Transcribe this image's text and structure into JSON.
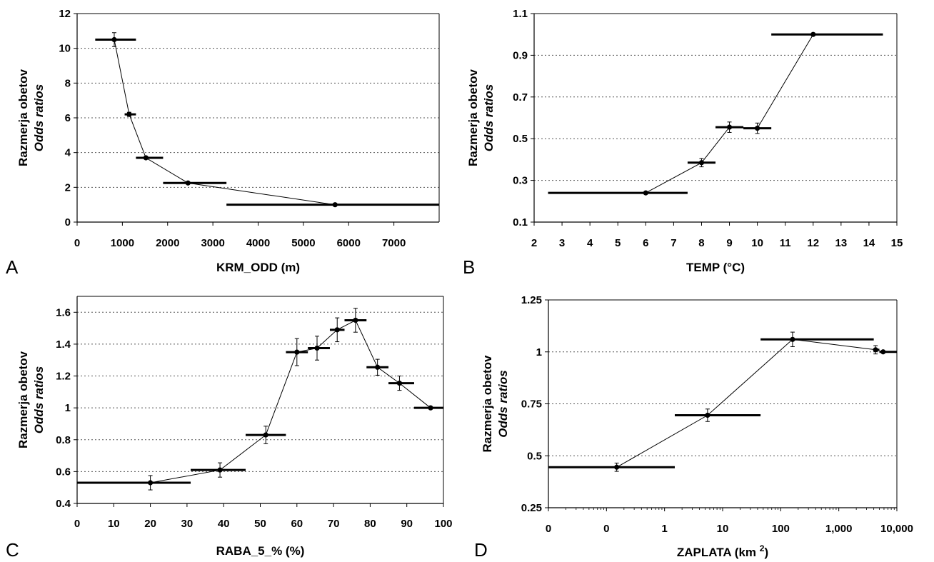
{
  "chart_data": [
    {
      "panel": "A",
      "type": "line",
      "xlabel": "KRM_ODD (m)",
      "ylabel": "Razmerja obetov",
      "ylabel_en": "Odds ratios",
      "xlim": [
        0,
        8000
      ],
      "ylim": [
        0,
        12
      ],
      "xticks": [
        0,
        1000,
        2000,
        3000,
        4000,
        5000,
        6000,
        7000
      ],
      "yticks": [
        0,
        2,
        4,
        6,
        8,
        10,
        12
      ],
      "xtick_labels": [
        "0",
        "1000",
        "2000",
        "3000",
        "4000",
        "5000",
        "6000",
        "7000"
      ],
      "ytick_labels": [
        "0",
        "2",
        "4",
        "6",
        "8",
        "10",
        "12"
      ],
      "grid": "horizontal-dotted",
      "points": [
        {
          "x": 820,
          "y": 10.5,
          "err": 0.4,
          "xmin": 400,
          "xmax": 1300
        },
        {
          "x": 1150,
          "y": 6.2,
          "err": 0.12,
          "xmin": 1050,
          "xmax": 1300
        },
        {
          "x": 1520,
          "y": 3.7,
          "err": 0.05,
          "xmin": 1300,
          "xmax": 1900
        },
        {
          "x": 2450,
          "y": 2.25,
          "err": 0.04,
          "xmin": 1900,
          "xmax": 3300
        },
        {
          "x": 5700,
          "y": 1.0,
          "err": 0,
          "xmin": 3300,
          "xmax": 8000
        }
      ]
    },
    {
      "panel": "B",
      "type": "line",
      "xlabel": "TEMP (°C)",
      "ylabel": "Razmerja obetov",
      "ylabel_en": "Odds ratios",
      "xlim": [
        2,
        15
      ],
      "ylim": [
        0.1,
        1.1
      ],
      "xticks": [
        2,
        3,
        4,
        5,
        6,
        7,
        8,
        9,
        10,
        11,
        12,
        13,
        14,
        15
      ],
      "yticks": [
        0.1,
        0.3,
        0.5,
        0.7,
        0.9,
        1.1
      ],
      "xtick_labels": [
        "2",
        "3",
        "4",
        "5",
        "6",
        "7",
        "8",
        "9",
        "10",
        "11",
        "12",
        "13",
        "14",
        "15"
      ],
      "ytick_labels": [
        "0.1",
        "0.3",
        "0.5",
        "0.7",
        "0.9",
        "1.1"
      ],
      "grid": "horizontal-dotted",
      "points": [
        {
          "x": 6,
          "y": 0.24,
          "err": 0,
          "xmin": 2.5,
          "xmax": 7.5
        },
        {
          "x": 8,
          "y": 0.385,
          "err": 0.02,
          "xmin": 7.5,
          "xmax": 8.5
        },
        {
          "x": 9,
          "y": 0.555,
          "err": 0.025,
          "xmin": 8.5,
          "xmax": 9.5
        },
        {
          "x": 10,
          "y": 0.55,
          "err": 0.025,
          "xmin": 9.5,
          "xmax": 10.5
        },
        {
          "x": 12,
          "y": 1.0,
          "err": 0,
          "xmin": 10.5,
          "xmax": 14.5
        }
      ]
    },
    {
      "panel": "C",
      "type": "line",
      "xlabel": "RABA_5_% (%)",
      "ylabel": "Razmerja obetov",
      "ylabel_en": "Odds ratios",
      "xlim": [
        0,
        100
      ],
      "ylim": [
        0.4,
        1.7
      ],
      "xticks": [
        0,
        10,
        20,
        30,
        40,
        50,
        60,
        70,
        80,
        90,
        100
      ],
      "yticks": [
        0.4,
        0.6,
        0.8,
        1.0,
        1.2,
        1.4,
        1.6
      ],
      "xtick_labels": [
        "0",
        "10",
        "20",
        "30",
        "40",
        "50",
        "60",
        "70",
        "80",
        "90",
        "100"
      ],
      "ytick_labels": [
        "0.4",
        "0.6",
        "0.8",
        "1",
        "1.2",
        "1.4",
        "1.6"
      ],
      "grid": "horizontal-dotted",
      "points": [
        {
          "x": 20,
          "y": 0.53,
          "err": 0.045,
          "xmin": 0,
          "xmax": 31
        },
        {
          "x": 39,
          "y": 0.61,
          "err": 0.045,
          "xmin": 31,
          "xmax": 46
        },
        {
          "x": 51.5,
          "y": 0.83,
          "err": 0.055,
          "xmin": 46,
          "xmax": 57
        },
        {
          "x": 60,
          "y": 1.35,
          "err": 0.085,
          "xmin": 57,
          "xmax": 63
        },
        {
          "x": 65.5,
          "y": 1.375,
          "err": 0.075,
          "xmin": 63,
          "xmax": 69
        },
        {
          "x": 71,
          "y": 1.49,
          "err": 0.075,
          "xmin": 69,
          "xmax": 73
        },
        {
          "x": 76,
          "y": 1.55,
          "err": 0.075,
          "xmin": 73,
          "xmax": 79
        },
        {
          "x": 82,
          "y": 1.255,
          "err": 0.05,
          "xmin": 79,
          "xmax": 85
        },
        {
          "x": 88,
          "y": 1.155,
          "err": 0.045,
          "xmin": 85,
          "xmax": 92
        },
        {
          "x": 96.5,
          "y": 1.0,
          "err": 0,
          "xmin": 92,
          "xmax": 100
        }
      ]
    },
    {
      "panel": "D",
      "type": "line",
      "xlabel": "ZAPLATA (km²)",
      "xlabel_base": "ZAPLATA (km",
      "xlabel_sup": "2",
      "xlabel_tail": ")",
      "ylabel": "Razmerja obetov",
      "ylabel_en": "Odds ratios",
      "xscale": "log",
      "xlim": [
        0.01,
        10000
      ],
      "ylim": [
        0.25,
        1.25
      ],
      "xticks": [
        0.01,
        0.1,
        1,
        10,
        100,
        1000,
        10000
      ],
      "xtick_labels": [
        "0",
        "0",
        "1",
        "10",
        "100",
        "1,000",
        "10,000"
      ],
      "yticks": [
        0.25,
        0.5,
        0.75,
        1.0,
        1.25
      ],
      "ytick_labels": [
        "0.25",
        "0.5",
        "0.75",
        "1",
        "1.25"
      ],
      "grid": "horizontal-dotted",
      "points": [
        {
          "x": 0.15,
          "y": 0.445,
          "err": 0.02,
          "xmin": 0.01,
          "xmax": 1.5
        },
        {
          "x": 5.5,
          "y": 0.695,
          "err": 0.03,
          "xmin": 1.5,
          "xmax": 45
        },
        {
          "x": 160,
          "y": 1.06,
          "err": 0.035,
          "xmin": 45,
          "xmax": 4000
        },
        {
          "x": 4300,
          "y": 1.01,
          "err": 0.02,
          "xmin": 4000,
          "xmax": 5000
        },
        {
          "x": 5800,
          "y": 1.0,
          "err": 0,
          "xmin": 5000,
          "xmax": 10000
        }
      ]
    }
  ]
}
